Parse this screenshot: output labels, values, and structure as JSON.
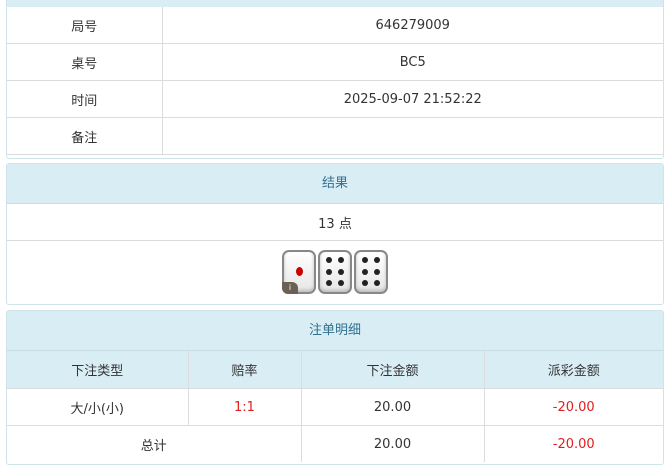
{
  "info": {
    "rows": [
      {
        "label": "局号",
        "value": "646279009"
      },
      {
        "label": "桌号",
        "value": "BC5"
      },
      {
        "label": "时间",
        "value": "2025-09-07 21:52:22"
      },
      {
        "label": "备注",
        "value": ""
      }
    ]
  },
  "result": {
    "title": "结果",
    "points": "13 点",
    "dice": [
      1,
      6,
      6
    ],
    "badge": "i"
  },
  "bets": {
    "title": "注单明细",
    "headers": [
      "下注类型",
      "赔率",
      "下注金额",
      "派彩金额"
    ],
    "rows": [
      {
        "type": "大/小(小)",
        "odds": "1:1",
        "amount": "20.00",
        "payout": "-20.00"
      }
    ],
    "total": {
      "label": "总计",
      "amount": "20.00",
      "payout": "-20.00"
    }
  },
  "colors": {
    "header_bg": "#d9edf5",
    "header_text": "#31708f",
    "negative": "#e02020"
  }
}
